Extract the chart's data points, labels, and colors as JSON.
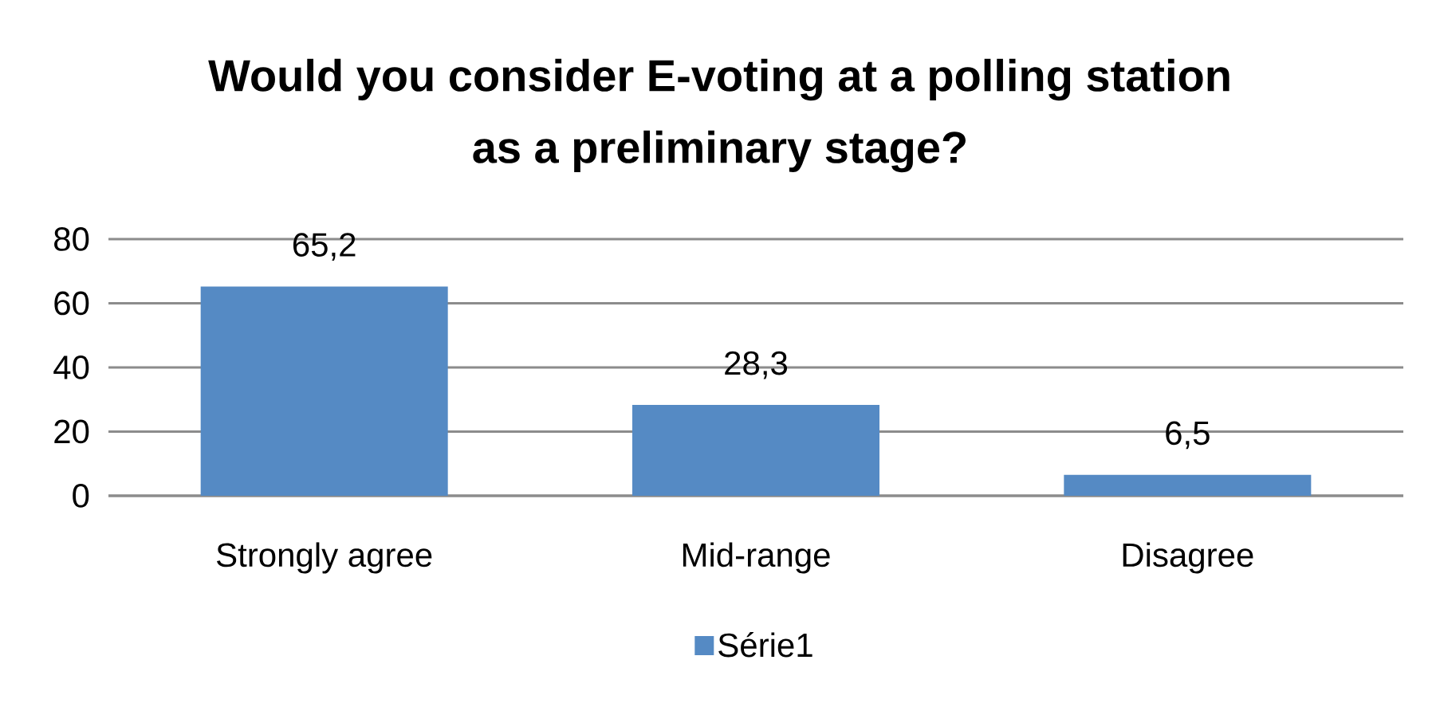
{
  "chart_data": {
    "type": "bar",
    "title": "Would you consider E-voting at a polling station as a preliminary stage?",
    "categories": [
      "Strongly agree",
      "Mid-range",
      "Disagree"
    ],
    "series": [
      {
        "name": "Série1",
        "color": "#558ac4",
        "values": [
          65.2,
          28.3,
          6.5
        ],
        "value_labels": [
          "65,2",
          "28,3",
          "6,5"
        ]
      }
    ],
    "ylim": [
      0,
      80
    ],
    "yticks": [
      0,
      20,
      40,
      60,
      80
    ],
    "grid": "y",
    "legend": "bottom"
  }
}
